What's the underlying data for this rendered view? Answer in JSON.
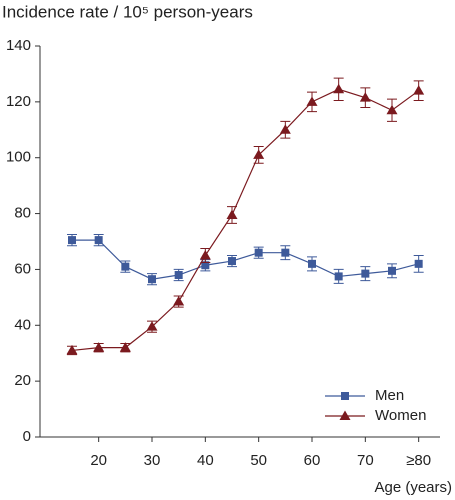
{
  "chart_data": {
    "type": "line",
    "title": "Incidence rate / 10⁵ person-years",
    "x_label": "Age (years)",
    "x": [
      15,
      20,
      25,
      30,
      35,
      40,
      45,
      50,
      55,
      60,
      65,
      70,
      75,
      80
    ],
    "series": [
      {
        "name": "Men",
        "color": "#3e5a9a",
        "marker": "square",
        "values": [
          70.5,
          70.5,
          61,
          56.5,
          58,
          61.5,
          63,
          66,
          66,
          62,
          57.5,
          58.5,
          59.5,
          62
        ],
        "errors": [
          2,
          2,
          2,
          2,
          2,
          2,
          2,
          2,
          2.5,
          2.5,
          2.5,
          2.5,
          2.5,
          3
        ]
      },
      {
        "name": "Women",
        "color": "#7b1a1f",
        "marker": "triangle",
        "values": [
          31,
          32,
          32,
          39.5,
          48.5,
          65,
          79.5,
          101,
          110,
          120,
          124.5,
          121.5,
          117,
          124
        ],
        "errors": [
          1.5,
          1.5,
          1.5,
          2,
          2,
          2.5,
          3,
          3,
          3,
          3.5,
          4,
          3.5,
          4,
          3.5
        ]
      }
    ],
    "xlim": [
      9,
      84
    ],
    "xticks": [
      20,
      30,
      40,
      50,
      60,
      70,
      {
        "value": 80,
        "label": "≥80"
      }
    ],
    "ylim": [
      0,
      140
    ],
    "yticks": [
      0,
      20,
      40,
      60,
      80,
      100,
      120,
      140
    ],
    "legend": "lower right"
  }
}
